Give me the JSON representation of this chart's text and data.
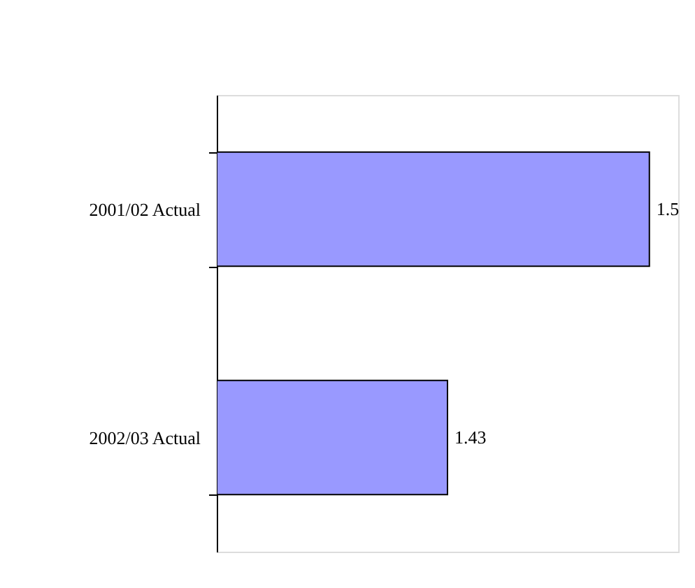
{
  "chart_data": {
    "type": "bar",
    "orientation": "horizontal",
    "categories": [
      "2001/02 Actual",
      "2002/03 Actual"
    ],
    "values": [
      1.5,
      1.43
    ],
    "color": "#9999ff",
    "xlim": [
      1.35,
      1.51
    ],
    "data_labels": true,
    "tick_labels": "y",
    "grid": false
  }
}
